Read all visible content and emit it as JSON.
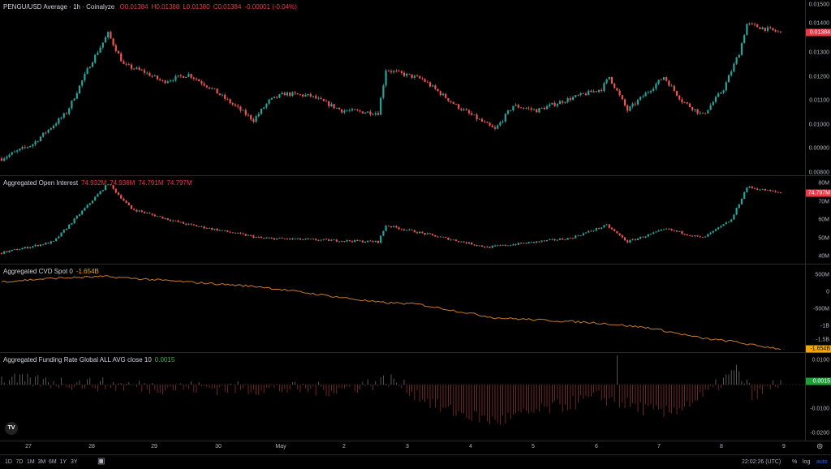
{
  "price_pane": {
    "title": "PENGU/USD Average · 1h · Coinalyze",
    "o": "O0.01384",
    "h": "H0.01388",
    "l": "L0.01380",
    "c": "C0.01384",
    "chg": "-0.00001 (-0.04%)",
    "ticks": [
      "0.01500",
      "0.01400",
      "0.01300",
      "0.01200",
      "0.01100",
      "0.01000",
      "0.00900",
      "0.00800"
    ],
    "last": "0.01384"
  },
  "oi_pane": {
    "title": "Aggregated Open Interest",
    "values": [
      "74.932M",
      "74.936M",
      "74.791M",
      "74.797M"
    ],
    "ticks": [
      "80M",
      "70M",
      "60M",
      "50M",
      "40M"
    ],
    "last": "74.797M"
  },
  "cvd_pane": {
    "title": "Aggregated CVD Spot 0",
    "value": "-1.654B",
    "ticks": [
      "500M",
      "0",
      "-500M",
      "-1B",
      "-1.5B"
    ],
    "last": "-1.654B"
  },
  "fund_pane": {
    "title": "Aggregated Funding Rate Global ALL AVG close 10",
    "value": "0.0015",
    "ticks": [
      "0.0100",
      "-0.0100",
      "-0.0200"
    ],
    "last": "0.0015"
  },
  "time_axis": [
    "27",
    "28",
    "29",
    "30",
    "May",
    "2",
    "3",
    "4",
    "5",
    "6",
    "7",
    "8",
    "9"
  ],
  "bottom": {
    "ranges": [
      "1D",
      "7D",
      "1M",
      "3M",
      "6M",
      "1Y",
      "3Y"
    ],
    "clock": "22:02:26 (UTC)",
    "pct": "%",
    "log": "log",
    "auto": "auto"
  },
  "logo": "TV",
  "colors": {
    "up": "#26a69a",
    "down": "#ef5350",
    "cvd": "#c77c2a",
    "accent": "#2962ff"
  },
  "chart_data": [
    {
      "type": "candlestick",
      "name": "PENGU/USD",
      "x_unit": "hour index",
      "ylim": [
        0.0079,
        0.0152
      ],
      "keypoints": [
        [
          0,
          0.0086
        ],
        [
          12,
          0.0092
        ],
        [
          25,
          0.0105
        ],
        [
          34,
          0.0125
        ],
        [
          41,
          0.0138
        ],
        [
          47,
          0.0125
        ],
        [
          55,
          0.0122
        ],
        [
          62,
          0.0118
        ],
        [
          72,
          0.0121
        ],
        [
          81,
          0.0115
        ],
        [
          97,
          0.0102
        ],
        [
          103,
          0.011
        ],
        [
          109,
          0.0113
        ],
        [
          119,
          0.0112
        ],
        [
          131,
          0.0106
        ],
        [
          145,
          0.0105
        ],
        [
          148,
          0.0123
        ],
        [
          162,
          0.0119
        ],
        [
          175,
          0.0108
        ],
        [
          190,
          0.0098
        ],
        [
          197,
          0.0108
        ],
        [
          206,
          0.0106
        ],
        [
          219,
          0.0111
        ],
        [
          231,
          0.0115
        ],
        [
          234,
          0.012
        ],
        [
          241,
          0.0106
        ],
        [
          247,
          0.0112
        ],
        [
          255,
          0.012
        ],
        [
          262,
          0.011
        ],
        [
          270,
          0.0104
        ],
        [
          278,
          0.0115
        ],
        [
          284,
          0.013
        ],
        [
          287,
          0.0142
        ],
        [
          300,
          0.01384
        ]
      ]
    },
    {
      "type": "candlestick",
      "name": "Open Interest (M)",
      "ylim": [
        36,
        84
      ],
      "keypoints": [
        [
          0,
          42
        ],
        [
          20,
          48
        ],
        [
          41,
          80
        ],
        [
          50,
          66
        ],
        [
          70,
          58
        ],
        [
          100,
          50
        ],
        [
          145,
          48
        ],
        [
          148,
          57
        ],
        [
          187,
          45
        ],
        [
          219,
          50
        ],
        [
          233,
          57
        ],
        [
          241,
          48
        ],
        [
          256,
          55
        ],
        [
          270,
          50
        ],
        [
          281,
          60
        ],
        [
          287,
          78
        ],
        [
          300,
          74.797
        ]
      ]
    },
    {
      "type": "line",
      "name": "CVD Spot (M)",
      "ylim": [
        -1750,
        800
      ],
      "keypoints": [
        [
          0,
          300
        ],
        [
          20,
          400
        ],
        [
          40,
          450
        ],
        [
          60,
          350
        ],
        [
          100,
          150
        ],
        [
          145,
          -300
        ],
        [
          160,
          -350
        ],
        [
          190,
          -750
        ],
        [
          230,
          -900
        ],
        [
          250,
          -1050
        ],
        [
          270,
          -1350
        ],
        [
          283,
          -1450
        ],
        [
          287,
          -1520
        ],
        [
          300,
          -1654
        ]
      ]
    },
    {
      "type": "bar",
      "name": "Funding Rate",
      "ylim": [
        -0.023,
        0.013
      ],
      "keypoints": [
        [
          0,
          0.002
        ],
        [
          60,
          -0.001
        ],
        [
          130,
          -0.002
        ],
        [
          150,
          0.002
        ],
        [
          170,
          -0.01
        ],
        [
          190,
          -0.015
        ],
        [
          210,
          -0.01
        ],
        [
          230,
          -0.005
        ],
        [
          255,
          -0.012
        ],
        [
          270,
          -0.005
        ],
        [
          283,
          0.006
        ],
        [
          290,
          -0.005
        ],
        [
          300,
          0.0015
        ]
      ]
    }
  ]
}
